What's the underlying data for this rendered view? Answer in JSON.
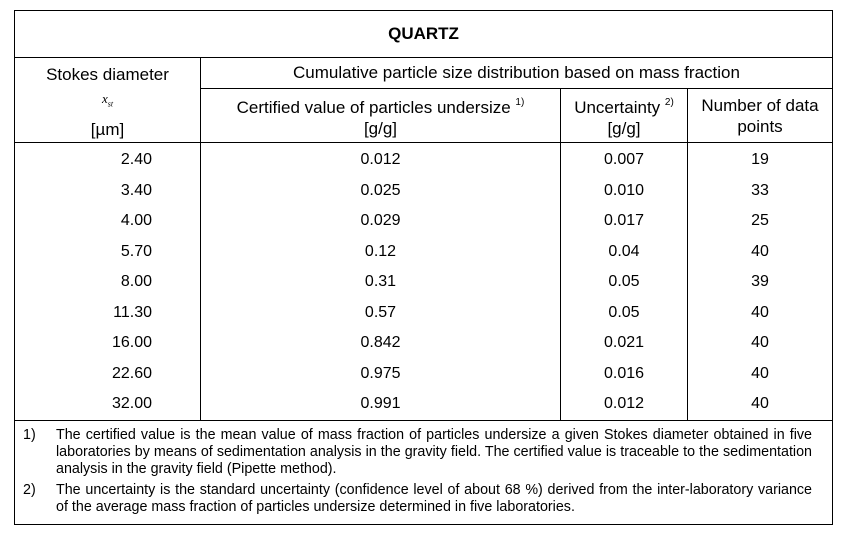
{
  "table": {
    "title": "QUARTZ",
    "header": {
      "stokes": "Stokes diameter",
      "symbol": "x",
      "symbol_sub": "st",
      "stokes_unit": "[µm]",
      "group": "Cumulative particle size distribution based on mass fraction",
      "certified": "Certified value of particles undersize",
      "certified_note": "1)",
      "certified_unit": "[g/g]",
      "uncertainty": "Uncertainty",
      "uncertainty_note": "2)",
      "uncertainty_unit": "[g/g]",
      "count": "Number of data points"
    },
    "rows": [
      [
        "2.40",
        "0.012",
        "0.007",
        "19"
      ],
      [
        "3.40",
        "0.025",
        "0.010",
        "33"
      ],
      [
        "4.00",
        "0.029",
        "0.017",
        "25"
      ],
      [
        "5.70",
        "0.12",
        "0.04",
        "40"
      ],
      [
        "8.00",
        "0.31",
        "0.05",
        "39"
      ],
      [
        "11.30",
        "0.57",
        "0.05",
        "40"
      ],
      [
        "16.00",
        "0.842",
        "0.021",
        "40"
      ],
      [
        "22.60",
        "0.975",
        "0.016",
        "40"
      ],
      [
        "32.00",
        "0.991",
        "0.012",
        "40"
      ]
    ],
    "footnotes": [
      {
        "marker": "1)",
        "text": "The certified value is the mean value of mass fraction of particles undersize a given Stokes diameter obtained in five laboratories by means of sedimentation analysis in the gravity field. The certified value is traceable to the sedimentation analysis in the gravity field (Pipette method)."
      },
      {
        "marker": "2)",
        "text": "The uncertainty is the standard uncertainty (confidence level of about 68 %) derived from the inter-laboratory variance of the average mass fraction of particles undersize determined in five laboratories."
      }
    ]
  }
}
